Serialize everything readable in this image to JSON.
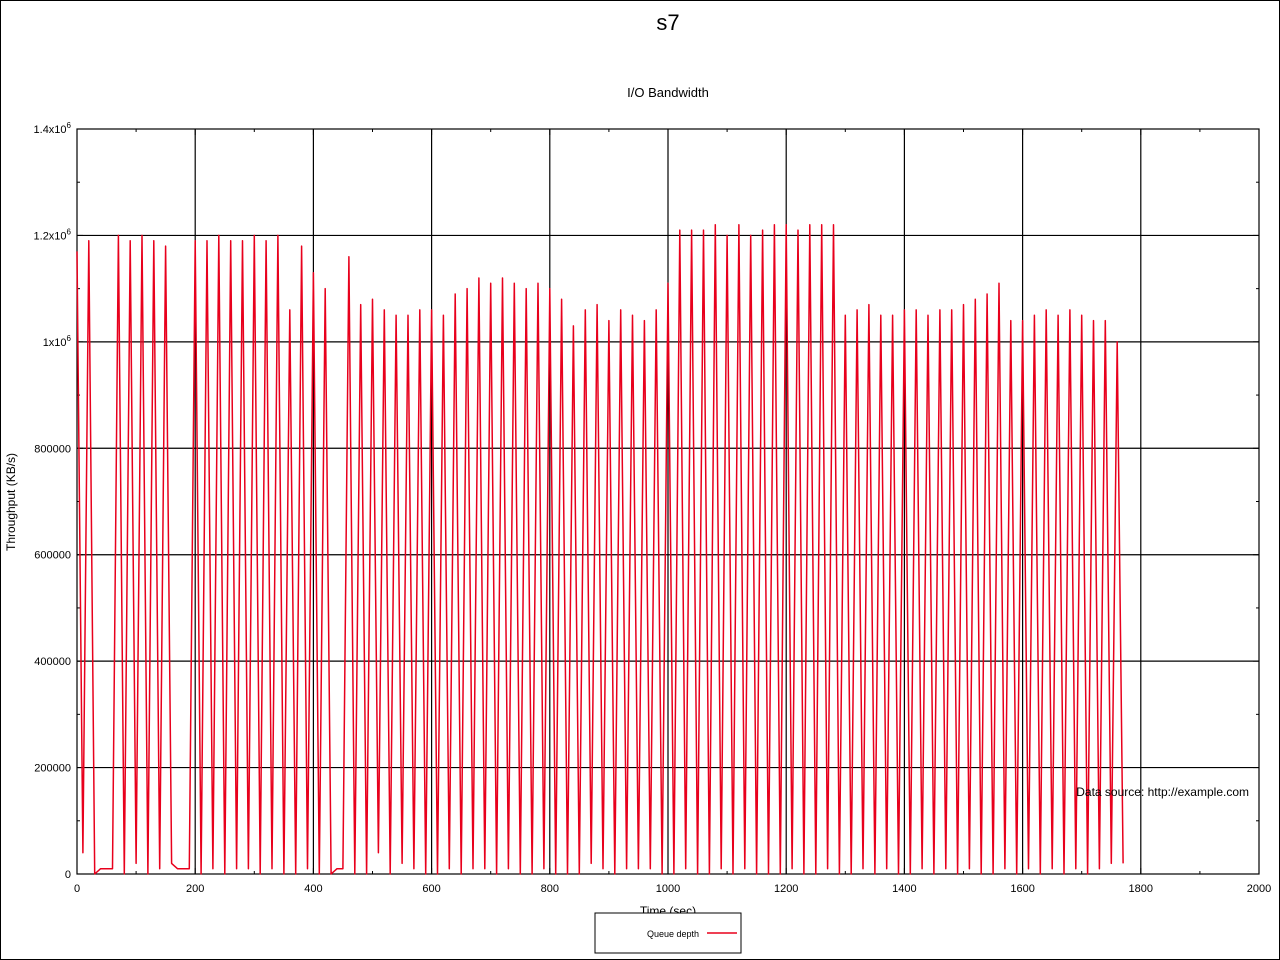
{
  "page": {
    "title": "s7"
  },
  "chart_data": {
    "type": "line",
    "title": "I/O Bandwidth",
    "xlabel": "Time (sec)",
    "ylabel": "Throughput (KB/s)",
    "xlim": [
      0,
      2000
    ],
    "ylim": [
      0,
      1400000
    ],
    "x_ticks": [
      0,
      200,
      400,
      600,
      800,
      1000,
      1200,
      1400,
      1600,
      1800,
      2000
    ],
    "y_ticks": [
      0,
      200000,
      400000,
      600000,
      800000,
      1000000,
      1200000,
      1400000
    ],
    "x_tick_labels": [
      "0",
      "200",
      "400",
      "600",
      "800",
      "1000",
      "1200",
      "1400",
      "1600",
      "1800",
      "2000"
    ],
    "y_tick_labels": [
      {
        "base": "0",
        "exp": ""
      },
      {
        "base": "200000",
        "exp": ""
      },
      {
        "base": "400000",
        "exp": ""
      },
      {
        "base": "600000",
        "exp": ""
      },
      {
        "base": "800000",
        "exp": ""
      },
      {
        "base": "1x10",
        "exp": "6"
      },
      {
        "base": "1.2x10",
        "exp": "6"
      },
      {
        "base": "1.4x10",
        "exp": "6"
      }
    ],
    "grid": true,
    "legend_position": "bottom-center",
    "annotation": "Data source: http://example.com",
    "series": [
      {
        "name": "Queue depth",
        "color": "#e8001c",
        "sample_interval_sec": 10,
        "values": [
          1170000,
          40000,
          1190000,
          0,
          10000,
          10000,
          10000,
          1200000,
          0,
          1190000,
          20000,
          1200000,
          0,
          1190000,
          10000,
          1180000,
          20000,
          10000,
          10000,
          10000,
          1190000,
          0,
          1190000,
          10000,
          1200000,
          0,
          1190000,
          10000,
          1190000,
          10000,
          1200000,
          0,
          1190000,
          10000,
          1200000,
          0,
          1060000,
          0,
          1180000,
          10000,
          1130000,
          0,
          1100000,
          0,
          10000,
          10000,
          1160000,
          0,
          1070000,
          0,
          1080000,
          40000,
          1060000,
          0,
          1050000,
          20000,
          1050000,
          10000,
          1060000,
          0,
          1060000,
          0,
          1050000,
          10000,
          1090000,
          0,
          1100000,
          10000,
          1120000,
          10000,
          1110000,
          0,
          1120000,
          10000,
          1110000,
          0,
          1100000,
          0,
          1110000,
          10000,
          1100000,
          0,
          1080000,
          0,
          1030000,
          0,
          1060000,
          20000,
          1070000,
          10000,
          1040000,
          0,
          1060000,
          10000,
          1050000,
          10000,
          1040000,
          10000,
          1060000,
          0,
          1110000,
          0,
          1210000,
          10000,
          1210000,
          0,
          1210000,
          0,
          1220000,
          10000,
          1200000,
          0,
          1220000,
          10000,
          1200000,
          0,
          1210000,
          0,
          1220000,
          0,
          1220000,
          10000,
          1210000,
          0,
          1220000,
          0,
          1220000,
          10000,
          1220000,
          0,
          1050000,
          0,
          1060000,
          10000,
          1070000,
          0,
          1050000,
          10000,
          1050000,
          0,
          1060000,
          0,
          1060000,
          10000,
          1050000,
          0,
          1060000,
          10000,
          1060000,
          0,
          1070000,
          10000,
          1080000,
          0,
          1090000,
          0,
          1110000,
          10000,
          1040000,
          0,
          1040000,
          10000,
          1050000,
          0,
          1060000,
          10000,
          1050000,
          0,
          1060000,
          10000,
          1050000,
          0,
          1040000,
          10000,
          1040000,
          20000,
          1000000,
          20000
        ]
      }
    ]
  }
}
